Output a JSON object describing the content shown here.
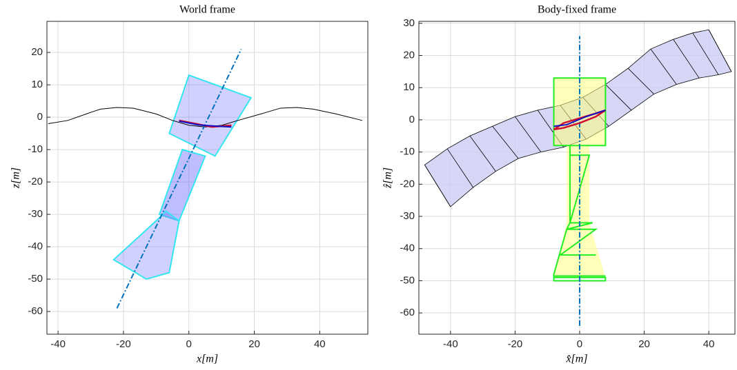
{
  "chart_data": [
    {
      "type": "line",
      "title": "World frame",
      "x_label": "x[m]",
      "y_label": "z[m]",
      "xlim": [
        -43.4,
        54.7
      ],
      "ylim": [
        -67,
        29.6
      ],
      "xticks": [
        -40,
        -20,
        0,
        20,
        40
      ],
      "yticks": [
        -60,
        -50,
        -40,
        -30,
        -20,
        -10,
        0,
        10,
        20
      ],
      "grid": true,
      "series": [
        {
          "type": "polygon",
          "color": "#6666ff",
          "fill_opacity": 0.3,
          "stroke": "#33e6f0",
          "x": [
            0,
            19,
            8,
            -6
          ],
          "y": [
            13,
            6,
            -12,
            -5
          ]
        },
        {
          "type": "polygon",
          "color": "#4444ff",
          "fill_opacity": 0.35,
          "stroke": "#33e6f0",
          "x": [
            -2,
            5,
            -3,
            -9
          ],
          "y": [
            -10,
            -12,
            -32,
            -30
          ]
        },
        {
          "type": "polygon",
          "color": "#6666ff",
          "fill_opacity": 0.3,
          "stroke": "#33e6f0",
          "x": [
            -7,
            -3,
            -6,
            -13,
            -23,
            -10
          ],
          "y": [
            -29,
            -32,
            -48,
            -50,
            -44,
            -32
          ]
        },
        {
          "type": "line",
          "color": "#000000",
          "width": 1,
          "x": [
            -43,
            -37,
            -30,
            -27,
            -22,
            -17,
            -10,
            -5,
            0,
            5,
            10,
            15,
            22,
            28,
            33,
            38,
            45,
            53
          ],
          "y": [
            -2,
            -1,
            1.5,
            2.5,
            3,
            2.8,
            1,
            -1,
            -2.5,
            -3,
            -2.5,
            -1,
            1,
            2.8,
            3,
            2.5,
            1,
            -1
          ]
        },
        {
          "type": "line",
          "color": "#0072bd",
          "width": 2,
          "dash": "8 3 2 3",
          "x": [
            -22,
            16
          ],
          "y": [
            -59,
            21
          ]
        },
        {
          "type": "line",
          "color": "#d01030",
          "width": 2.5,
          "x": [
            -3,
            2,
            7,
            13
          ],
          "y": [
            -1,
            -2,
            -3,
            -2.5
          ]
        },
        {
          "type": "line",
          "color": "#1010c0",
          "width": 2,
          "x": [
            -3,
            3,
            9,
            13
          ],
          "y": [
            -1.2,
            -2.4,
            -2.8,
            -3
          ]
        }
      ]
    },
    {
      "type": "line",
      "title": "Body-fixed frame",
      "x_label": "x̂[m]",
      "y_label": "ẑ[m]",
      "xlim": [
        -49.8,
        48.1
      ],
      "ylim": [
        -66.6,
        30.6
      ],
      "xticks": [
        -40,
        -20,
        0,
        20,
        40
      ],
      "yticks": [
        -60,
        -50,
        -40,
        -30,
        -20,
        -10,
        0,
        10,
        20,
        30
      ],
      "grid": true,
      "band_top": {
        "x": [
          -48,
          -41,
          -34,
          -27,
          -20,
          -13,
          -6,
          1,
          8,
          15,
          22,
          29,
          35,
          40
        ],
        "y": [
          -14,
          -9,
          -5,
          -2,
          1,
          3,
          4.5,
          7,
          11,
          16,
          22,
          25,
          27,
          28
        ]
      },
      "band_bottom": {
        "x": [
          -40,
          -33,
          -26,
          -19,
          -12,
          -5,
          2,
          9,
          16,
          23,
          30,
          37,
          43,
          47
        ],
        "y": [
          -27,
          -21,
          -16,
          -12,
          -10,
          -8.5,
          -6,
          -2,
          3,
          8,
          11,
          13,
          14,
          15
        ]
      },
      "band_color": "#ccccf5",
      "series": [
        {
          "type": "polygon",
          "color": "#ffff80",
          "fill_opacity": 0.55,
          "stroke": "none",
          "x": [
            -8,
            8,
            8,
            3,
            3,
            8,
            -8,
            -4,
            -4,
            -8
          ],
          "y": [
            13,
            13,
            -8,
            -8,
            -32,
            -49,
            -49,
            -32,
            -8,
            -8
          ]
        },
        {
          "type": "line",
          "color": "#22ee22",
          "width": 2,
          "x": [
            -3,
            -8,
            -8,
            8,
            8,
            -8
          ],
          "y": [
            -8,
            -8,
            13,
            13,
            -8,
            -8
          ]
        },
        {
          "type": "line",
          "color": "#22ee22",
          "width": 2,
          "x": [
            -3,
            -3,
            -4,
            -8,
            -8,
            8,
            8,
            -8,
            -8,
            8
          ],
          "y": [
            -8,
            -32,
            -34,
            -48,
            -50,
            -50,
            -49,
            -49,
            -48.5,
            -48.5
          ]
        },
        {
          "type": "line",
          "color": "#22ee22",
          "width": 2,
          "x": [
            -3,
            3,
            -3,
            4,
            -4,
            5,
            -6,
            5
          ],
          "y": [
            -11,
            -11,
            -32,
            -32,
            -34,
            -34,
            -42,
            -42
          ]
        },
        {
          "type": "line",
          "color": "#0072bd",
          "width": 2,
          "dash": "8 3 2 3",
          "x": [
            0,
            0
          ],
          "y": [
            -64,
            26
          ]
        },
        {
          "type": "line",
          "color": "#d01030",
          "width": 2.5,
          "x": [
            -8,
            -5,
            0,
            5,
            8,
            5,
            0,
            -5,
            -8
          ],
          "y": [
            -3,
            -1,
            0.5,
            2,
            3,
            1,
            -1,
            -2.5,
            -3
          ]
        },
        {
          "type": "line",
          "color": "#1010c0",
          "width": 2,
          "x": [
            -8,
            -4,
            2,
            8
          ],
          "y": [
            -2,
            -1.5,
            1,
            3
          ]
        }
      ]
    }
  ]
}
